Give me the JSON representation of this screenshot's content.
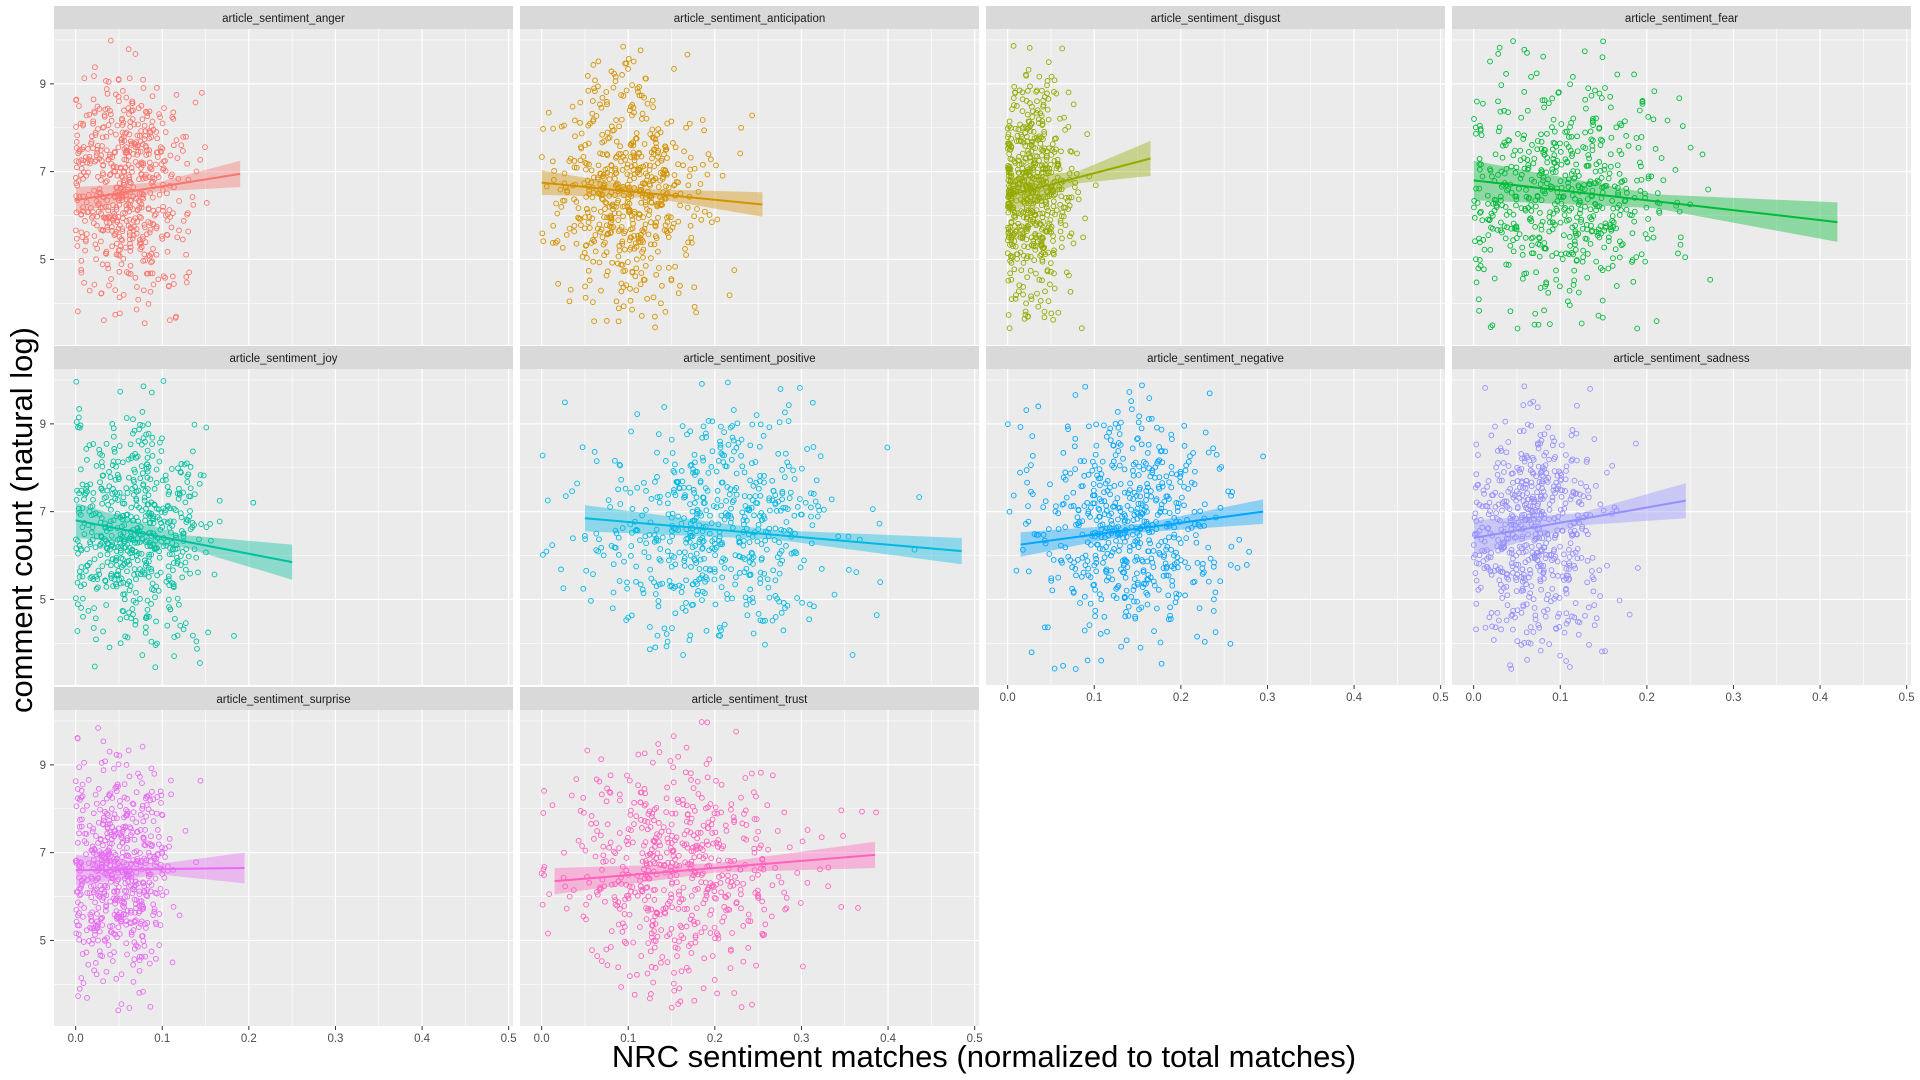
{
  "chart_data": {
    "type": "scatter",
    "facet_layout": "4 columns x 3 rows, shared axes",
    "xlabel": "NRC sentiment matches (normalized to total matches)",
    "ylabel": "comment count (natural log)",
    "xlim": [
      -0.025,
      0.505
    ],
    "ylim": [
      3.05,
      10.25
    ],
    "x_ticks": [
      "0.0",
      "0.1",
      "0.2",
      "0.3",
      "0.4",
      "0.5"
    ],
    "y_ticks": [
      "5",
      "7",
      "9"
    ],
    "x_tick_values": [
      0,
      0.1,
      0.2,
      0.3,
      0.4,
      0.5
    ],
    "y_tick_values": [
      5,
      7,
      9
    ],
    "grid": true,
    "legend": "none",
    "points_per_panel_estimate": 600,
    "y_center": 6.6,
    "y_spread": 1.25,
    "panels": [
      {
        "name": "article_sentiment_anger",
        "color": "#F8766D",
        "x_mean": 0.06,
        "x_sd": 0.035,
        "x_max": 0.19,
        "fit": {
          "x": [
            0.0,
            0.19
          ],
          "y": [
            6.35,
            6.95
          ]
        },
        "band": 0.3
      },
      {
        "name": "article_sentiment_anticipation",
        "color": "#D39200",
        "x_mean": 0.1,
        "x_sd": 0.045,
        "x_max": 0.255,
        "fit": {
          "x": [
            0.0,
            0.255
          ],
          "y": [
            6.75,
            6.25
          ]
        },
        "band": 0.28
      },
      {
        "name": "article_sentiment_disgust",
        "color": "#93AA00",
        "x_mean": 0.03,
        "x_sd": 0.022,
        "x_max": 0.165,
        "fit": {
          "x": [
            0.0,
            0.165
          ],
          "y": [
            6.45,
            7.3
          ]
        },
        "band": 0.4
      },
      {
        "name": "article_sentiment_fear",
        "color": "#00BA38",
        "x_mean": 0.1,
        "x_sd": 0.06,
        "x_max": 0.42,
        "fit": {
          "x": [
            0.0,
            0.42
          ],
          "y": [
            6.8,
            5.85
          ]
        },
        "band": 0.45
      },
      {
        "name": "article_sentiment_joy",
        "color": "#00C19F",
        "x_mean": 0.07,
        "x_sd": 0.04,
        "x_max": 0.25,
        "fit": {
          "x": [
            0.0,
            0.25
          ],
          "y": [
            6.8,
            5.85
          ]
        },
        "band": 0.4
      },
      {
        "name": "article_sentiment_positive",
        "color": "#00B9E3",
        "x_mean": 0.2,
        "x_sd": 0.07,
        "x_max": 0.49,
        "fit": {
          "x": [
            0.05,
            0.485
          ],
          "y": [
            6.85,
            6.1
          ]
        },
        "band": 0.3
      },
      {
        "name": "article_sentiment_negative",
        "color": "#00A5FF",
        "x_mean": 0.14,
        "x_sd": 0.055,
        "x_max": 0.295,
        "fit": {
          "x": [
            0.015,
            0.295
          ],
          "y": [
            6.25,
            7.0
          ]
        },
        "band": 0.28
      },
      {
        "name": "article_sentiment_sadness",
        "color": "#9590FF",
        "x_mean": 0.07,
        "x_sd": 0.04,
        "x_max": 0.25,
        "fit": {
          "x": [
            0.0,
            0.245
          ],
          "y": [
            6.4,
            7.25
          ]
        },
        "band": 0.4
      },
      {
        "name": "article_sentiment_surprise",
        "color": "#E76BF3",
        "x_mean": 0.05,
        "x_sd": 0.03,
        "x_max": 0.195,
        "fit": {
          "x": [
            0.0,
            0.195
          ],
          "y": [
            6.6,
            6.65
          ]
        },
        "band": 0.35
      },
      {
        "name": "article_sentiment_trust",
        "color": "#FF62BC",
        "x_mean": 0.16,
        "x_sd": 0.065,
        "x_max": 0.39,
        "fit": {
          "x": [
            0.015,
            0.385
          ],
          "y": [
            6.35,
            6.95
          ]
        },
        "band": 0.3
      }
    ]
  }
}
